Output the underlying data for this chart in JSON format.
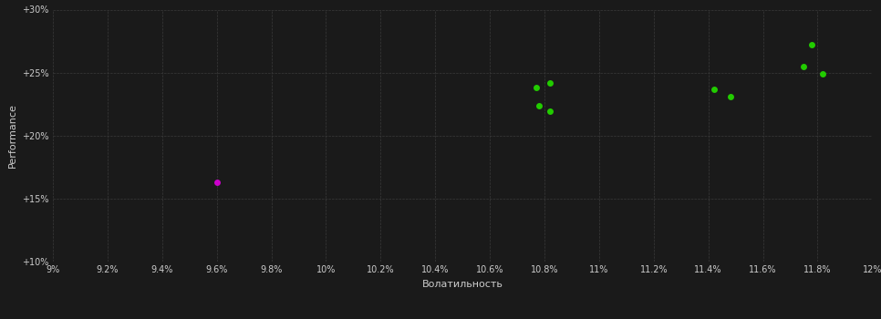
{
  "background_color": "#1a1a1a",
  "grid_color": "#3a3a3a",
  "text_color": "#cccccc",
  "xlabel": "Волатильность",
  "ylabel": "Performance",
  "xlim": [
    0.09,
    0.12
  ],
  "ylim": [
    0.1,
    0.3
  ],
  "xticks": [
    0.09,
    0.092,
    0.094,
    0.096,
    0.098,
    0.1,
    0.102,
    0.104,
    0.106,
    0.108,
    0.11,
    0.112,
    0.114,
    0.116,
    0.118,
    0.12
  ],
  "yticks": [
    0.1,
    0.15,
    0.2,
    0.25,
    0.3
  ],
  "green_points": [
    [
      0.1077,
      0.238
    ],
    [
      0.1082,
      0.242
    ],
    [
      0.1078,
      0.224
    ],
    [
      0.1082,
      0.219
    ],
    [
      0.1142,
      0.237
    ],
    [
      0.1148,
      0.231
    ],
    [
      0.1178,
      0.272
    ],
    [
      0.1175,
      0.255
    ],
    [
      0.1182,
      0.249
    ]
  ],
  "magenta_points": [
    [
      0.096,
      0.163
    ]
  ],
  "green_color": "#22cc00",
  "magenta_color": "#cc00cc",
  "marker_size": 5
}
